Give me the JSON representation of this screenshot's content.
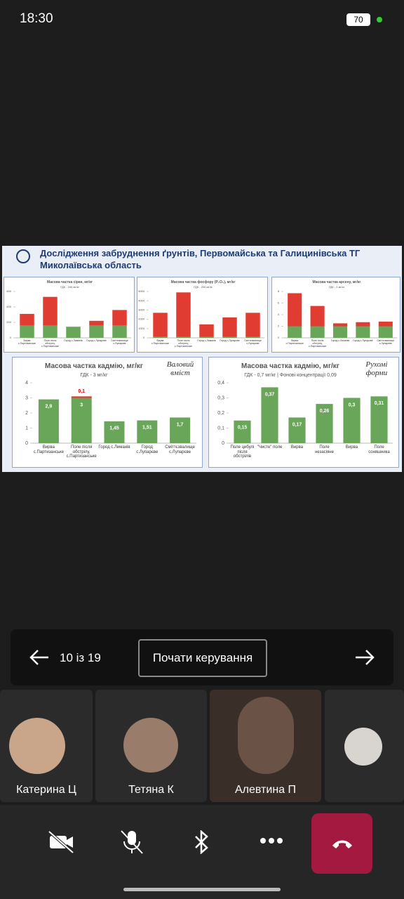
{
  "status_bar": {
    "time": "18:30",
    "battery": "70"
  },
  "slide": {
    "title": "Дослідження забруднення ґрунтів, Первомайська  та Галицинівська ТГ",
    "subtitle": "Миколаївська область",
    "charts": [
      {
        "type": "bar",
        "title": "Масова частка сірки, мг/кг",
        "subtitle": "ГДК - 160 мг/кг",
        "categories": [
          "Вирва с.Партизанське",
          "Поле після обстрілу, с.Партизанське",
          "Город с.Лиманів",
          "Город с.Лупарєве",
          "Сміттєзвалище с.Лупарєве"
        ],
        "series": [
          {
            "color": "#6aa65a",
            "values": [
              160,
              160,
              144,
              160,
              160
            ]
          },
          {
            "color": "#e03c31",
            "values": [
              150,
              370,
              null,
              60,
              200
            ]
          }
        ],
        "ylim": [
          0,
          600
        ],
        "yticks": [
          0,
          200,
          400,
          600
        ]
      },
      {
        "type": "bar",
        "title": "Масова частка фосфору (P₂O₅), мг/кг",
        "subtitle": "ГДК - 200 мг/кг",
        "categories": [
          "Вирва с.Партизанське",
          "Поле після обстрілу, с.Партизанське",
          "Город с.Лиманів",
          "Город с.Лупарєве",
          "Сміттєзвалище с.Лупарєве"
        ],
        "series": [
          {
            "color": "#6aa65a",
            "values": [
              100,
              100,
              100,
              100,
              100
            ]
          },
          {
            "color": "#e03c31",
            "values": [
              2600,
              4800,
              1350,
              2100,
              2600
            ]
          }
        ],
        "ylim": [
          0,
          5000
        ],
        "yticks": [
          0,
          1000,
          2000,
          3000,
          4000,
          5000
        ]
      },
      {
        "type": "bar",
        "title": "Масова частка арсену, мг/кг",
        "subtitle": "ГДК - 2 мг/кг",
        "categories": [
          "Вирва с.Партизанське",
          "Поле після обстрілу, с.Партизанське",
          "Город с.Лиманів",
          "Город с.Лупарєве",
          "Сміттєзвалище с.Лупарєве"
        ],
        "series": [
          {
            "color": "#6aa65a",
            "values": [
              2,
              2,
              2,
              2,
              2
            ]
          },
          {
            "color": "#e03c31",
            "values": [
              5.7,
              3.5,
              0.5,
              0.7,
              0.8
            ]
          }
        ],
        "ylim": [
          0,
          8
        ],
        "yticks": [
          0,
          2,
          4,
          6,
          8
        ]
      },
      {
        "type": "bar",
        "title": "Масова частка кадмію, мг/кг",
        "subtitle": "ГДК - 3 мг/кг",
        "annotation": "Валовий вміст",
        "categories": [
          "Вирва с.Партизанське",
          "Поле після обстрілу, с.Партизанське",
          "Город с.Лиманів",
          "Город с.Лупарєве",
          "Сміттєзвалище с.Лупарєве"
        ],
        "series": [
          {
            "color": "#6aa65a",
            "values": [
              2.9,
              3,
              1.45,
              1.51,
              1.7
            ],
            "value_labels": [
              "2,9",
              "3",
              "1,45",
              "1,51",
              "1,7"
            ]
          },
          {
            "color": "#e03c31",
            "values": [
              null,
              0.1,
              null,
              null,
              null
            ],
            "value_labels": [
              null,
              "0,1",
              null,
              null,
              null
            ]
          }
        ],
        "ylim": [
          0,
          4
        ],
        "yticks": [
          0,
          1,
          2,
          3,
          4
        ]
      },
      {
        "type": "bar",
        "title": "Масова частка кадмію, мг/кг",
        "subtitle": "ГДК - 0,7 мг/кг  |  Фонові концентрації 0,09",
        "annotation": "Рухомі форми",
        "categories": [
          "Поле цибулі після обстрілів",
          "\"Чисте\" поле",
          "Вирва",
          "Поле незасіяне",
          "Вирва",
          "Поле соняшника"
        ],
        "series": [
          {
            "color": "#6aa65a",
            "values": [
              0.15,
              0.37,
              0.17,
              0.26,
              0.3,
              0.31
            ],
            "value_labels": [
              "0,15",
              "0,37",
              "0,17",
              "0,26",
              "0,3",
              "0,31"
            ]
          }
        ],
        "ylim": [
          0,
          0.4
        ],
        "yticks": [
          0,
          {
            "value": 0.1,
            "label": "0,1"
          },
          {
            "value": 0.2,
            "label": "0,2"
          },
          {
            "value": 0.3,
            "label": "0,3"
          },
          {
            "value": 0.4,
            "label": "0,4"
          }
        ]
      }
    ]
  },
  "controls": {
    "page": "10 із 19",
    "control_button": "Почати керування"
  },
  "participants": [
    {
      "name": "Катерина Ц"
    },
    {
      "name": "Тетяна К"
    },
    {
      "name": "Алевтина П"
    }
  ]
}
